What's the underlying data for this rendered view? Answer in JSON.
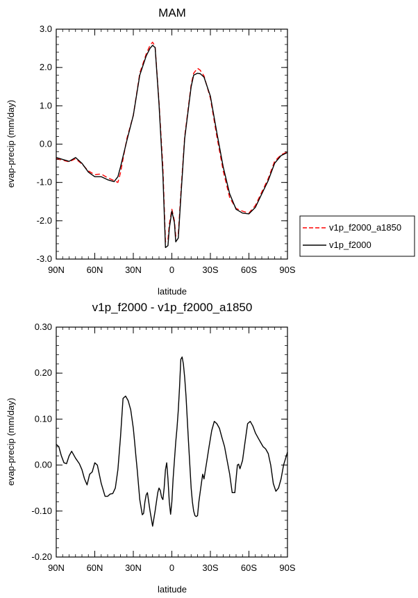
{
  "chart_data": [
    {
      "type": "line",
      "title": "MAM",
      "xlabel": "latitude",
      "ylabel": "evap-precip (mm/day)",
      "xlim": [
        90,
        -90
      ],
      "ylim": [
        -3.0,
        3.0
      ],
      "yticks": [
        3.0,
        2.0,
        1.0,
        0.0,
        -1.0,
        -2.0,
        -3.0
      ],
      "ytick_labels": [
        "3.0",
        "2.0",
        "1.0",
        "0.0",
        "-1.0",
        "-2.0",
        "-3.0"
      ],
      "xticks": [
        90,
        60,
        30,
        0,
        -30,
        -60,
        -90
      ],
      "xtick_labels": [
        "90N",
        "60N",
        "30N",
        "0",
        "30S",
        "60S",
        "90S"
      ],
      "grid": false,
      "legend": "outside-right",
      "x": [
        90,
        85,
        80,
        75,
        70,
        65,
        60,
        55,
        50,
        45,
        42,
        40,
        35,
        30,
        25,
        20,
        17,
        15,
        13,
        10,
        7,
        5,
        3,
        2,
        0,
        -2,
        -3,
        -5,
        -7,
        -10,
        -13,
        -15,
        -17,
        -20,
        -22,
        -25,
        -30,
        -35,
        -40,
        -45,
        -50,
        -55,
        -60,
        -65,
        -70,
        -75,
        -80,
        -85,
        -90
      ],
      "series": [
        {
          "name": "v1p_f2000_a1850",
          "color": "#ff0000",
          "dash": "dashed",
          "values": [
            -0.38,
            -0.42,
            -0.46,
            -0.38,
            -0.52,
            -0.7,
            -0.8,
            -0.78,
            -0.88,
            -0.95,
            -1.0,
            -0.75,
            0.15,
            0.75,
            1.85,
            2.35,
            2.58,
            2.66,
            2.55,
            1.1,
            -0.6,
            -2.55,
            -2.5,
            -2.1,
            -1.7,
            -2.0,
            -2.4,
            -2.35,
            -1.3,
            0.2,
            1.0,
            1.55,
            1.85,
            1.98,
            1.93,
            1.78,
            1.2,
            0.2,
            -0.7,
            -1.4,
            -1.68,
            -1.75,
            -1.8,
            -1.6,
            -1.25,
            -0.9,
            -0.45,
            -0.28,
            -0.2
          ]
        },
        {
          "name": "v1p_f2000",
          "color": "#000000",
          "dash": "solid",
          "values": [
            -0.35,
            -0.4,
            -0.45,
            -0.35,
            -0.5,
            -0.73,
            -0.85,
            -0.85,
            -0.93,
            -0.98,
            -0.85,
            -0.6,
            0.1,
            0.75,
            1.8,
            2.3,
            2.5,
            2.58,
            2.52,
            1.05,
            -0.8,
            -2.7,
            -2.65,
            -2.2,
            -1.75,
            -2.05,
            -2.55,
            -2.45,
            -1.4,
            0.15,
            0.95,
            1.5,
            1.8,
            1.85,
            1.84,
            1.75,
            1.25,
            0.3,
            -0.6,
            -1.3,
            -1.7,
            -1.8,
            -1.82,
            -1.65,
            -1.3,
            -0.95,
            -0.5,
            -0.3,
            -0.22
          ]
        }
      ]
    },
    {
      "type": "line",
      "title": "v1p_f2000 - v1p_f2000_a1850",
      "xlabel": "latitude",
      "ylabel": "evap-precip (mm/day)",
      "xlim": [
        90,
        -90
      ],
      "ylim": [
        -0.2,
        0.3
      ],
      "yticks": [
        0.3,
        0.2,
        0.1,
        0.0,
        -0.1,
        -0.2
      ],
      "ytick_labels": [
        "0.30",
        "0.20",
        "0.10",
        "0.00",
        "-0.10",
        "-0.20"
      ],
      "xticks": [
        90,
        60,
        30,
        0,
        -30,
        -60,
        -90
      ],
      "xtick_labels": [
        "90N",
        "60N",
        "30N",
        "0",
        "30S",
        "60S",
        "90S"
      ],
      "grid": false,
      "x": [
        90,
        88,
        86,
        84,
        82,
        80,
        78,
        75,
        72,
        70,
        68,
        66,
        64,
        62,
        60,
        58,
        55,
        52,
        50,
        48,
        46,
        44,
        42,
        40,
        38,
        36,
        34,
        32,
        30,
        29,
        28,
        27,
        25,
        23,
        22,
        21,
        20,
        19,
        18,
        17,
        15,
        13,
        11,
        10,
        9,
        8,
        7,
        6,
        5,
        4,
        3,
        2,
        1,
        0,
        -1,
        -2,
        -3,
        -4,
        -5,
        -6,
        -7,
        -8,
        -9,
        -10,
        -11,
        -12,
        -13,
        -14,
        -15,
        -16,
        -17,
        -18,
        -19,
        -20,
        -21,
        -22,
        -23,
        -24,
        -25,
        -27,
        -29,
        -31,
        -33,
        -35,
        -37,
        -39,
        -41,
        -43,
        -45,
        -47,
        -49,
        -50,
        -51,
        -52,
        -53,
        -55,
        -57,
        -59,
        -61,
        -63,
        -65,
        -67,
        -69,
        -71,
        -73,
        -75,
        -77,
        -79,
        -81,
        -83,
        -85,
        -87,
        -90
      ],
      "series": [
        {
          "name": "v1p_f2000",
          "color": "#000000",
          "dash": "solid",
          "values": [
            0.045,
            0.04,
            0.02,
            0.005,
            0.003,
            0.02,
            0.03,
            0.015,
            0.003,
            -0.01,
            -0.03,
            -0.043,
            -0.02,
            -0.015,
            0.005,
            0.0,
            -0.04,
            -0.068,
            -0.068,
            -0.063,
            -0.062,
            -0.05,
            -0.01,
            0.06,
            0.145,
            0.15,
            0.14,
            0.12,
            0.08,
            0.05,
            0.02,
            -0.01,
            -0.075,
            -0.108,
            -0.105,
            -0.08,
            -0.065,
            -0.06,
            -0.08,
            -0.1,
            -0.133,
            -0.1,
            -0.06,
            -0.05,
            -0.055,
            -0.07,
            -0.075,
            -0.05,
            -0.01,
            0.005,
            -0.03,
            -0.08,
            -0.107,
            -0.08,
            -0.03,
            0.01,
            0.05,
            0.08,
            0.12,
            0.17,
            0.23,
            0.235,
            0.22,
            0.19,
            0.15,
            0.1,
            0.05,
            0.0,
            -0.05,
            -0.08,
            -0.1,
            -0.11,
            -0.112,
            -0.11,
            -0.08,
            -0.06,
            -0.04,
            -0.02,
            -0.03,
            0.005,
            0.04,
            0.075,
            0.095,
            0.09,
            0.08,
            0.06,
            0.04,
            0.01,
            -0.02,
            -0.06,
            -0.06,
            -0.03,
            0.0,
            0.002,
            -0.008,
            0.01,
            0.05,
            0.09,
            0.095,
            0.085,
            0.07,
            0.06,
            0.05,
            0.04,
            0.035,
            0.025,
            0.0,
            -0.04,
            -0.057,
            -0.05,
            -0.03,
            0.0,
            0.028
          ]
        }
      ]
    }
  ]
}
